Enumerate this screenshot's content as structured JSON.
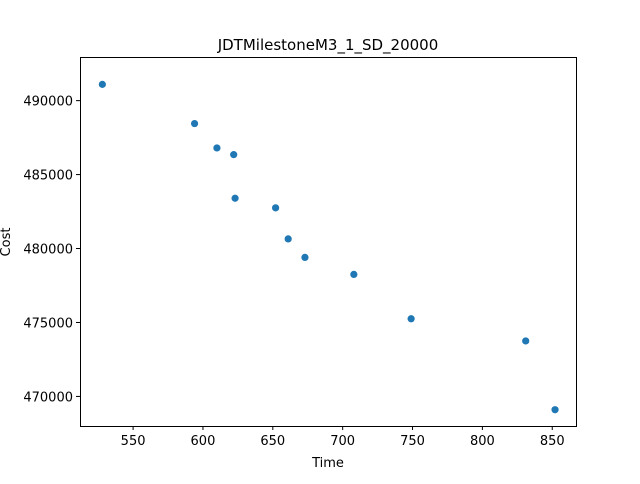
{
  "chart_data": {
    "type": "scatter",
    "title": "JDTMilestoneM3_1_SD_20000",
    "xlabel": "Time",
    "ylabel": "Cost",
    "xlim": [
      512,
      867
    ],
    "ylim": [
      468000,
      492950
    ],
    "xticks": [
      550,
      600,
      650,
      700,
      750,
      800,
      850
    ],
    "yticks": [
      470000,
      475000,
      480000,
      485000,
      490000
    ],
    "grid": false,
    "marker_color": "#1f77b4",
    "points": [
      {
        "x": 528,
        "y": 491100
      },
      {
        "x": 594,
        "y": 488450
      },
      {
        "x": 610,
        "y": 486800
      },
      {
        "x": 622,
        "y": 486350
      },
      {
        "x": 623,
        "y": 483400
      },
      {
        "x": 652,
        "y": 482750
      },
      {
        "x": 661,
        "y": 480650
      },
      {
        "x": 673,
        "y": 479400
      },
      {
        "x": 708,
        "y": 478250
      },
      {
        "x": 749,
        "y": 475250
      },
      {
        "x": 831,
        "y": 473750
      },
      {
        "x": 852,
        "y": 469100
      }
    ]
  }
}
